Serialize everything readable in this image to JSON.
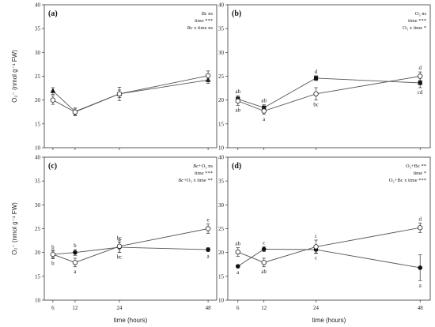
{
  "chart_data": [
    {
      "panel": "(a)",
      "type": "line",
      "ylabel": "O₂⁻ (nmol g⁻¹ FW)",
      "xlabel": "",
      "ylim": [
        10,
        40
      ],
      "yticks": [
        10,
        15,
        20,
        25,
        30,
        35,
        40
      ],
      "x": [
        6,
        12,
        24,
        48
      ],
      "xtick_labels": [],
      "stats": [
        {
          "italic": "Bc",
          "text": " ns"
        },
        {
          "italic": "",
          "text": "time ***"
        },
        {
          "italic": "Bc",
          "text": " x time ns"
        }
      ],
      "series": [
        {
          "marker": "triangle-filled",
          "values": [
            21.9,
            17.6,
            21.3,
            24.2
          ],
          "err": [
            0.7,
            0.7,
            0.8,
            0.7
          ],
          "letters": [
            "",
            "",
            "",
            ""
          ],
          "letter_pos": [
            "above",
            "above",
            "above",
            "above"
          ]
        },
        {
          "marker": "circle-open",
          "values": [
            20.0,
            17.5,
            21.3,
            25.1
          ],
          "err": [
            0.9,
            0.8,
            1.4,
            1.0
          ],
          "letters": [
            "",
            "",
            "",
            ""
          ],
          "letter_pos": [
            "below",
            "below",
            "below",
            "below"
          ]
        }
      ]
    },
    {
      "panel": "(b)",
      "type": "line",
      "ylabel": "",
      "xlabel": "",
      "ylim": [
        10,
        40
      ],
      "yticks": [
        10,
        15,
        20,
        25,
        30,
        35,
        40
      ],
      "x": [
        6,
        12,
        24,
        48
      ],
      "xtick_labels": [],
      "stats": [
        {
          "italic": "",
          "text": "O₃ ns"
        },
        {
          "italic": "",
          "text": "time ***"
        },
        {
          "italic": "",
          "text": "O₃ x time *"
        }
      ],
      "series": [
        {
          "marker": "square-filled",
          "values": [
            20.2,
            18.4,
            24.6,
            23.6
          ],
          "err": [
            0.7,
            0.6,
            0.5,
            1.0
          ],
          "letters": [
            "ab",
            "ab",
            "d",
            "cd"
          ],
          "letter_pos": [
            "above",
            "above",
            "above",
            "below"
          ]
        },
        {
          "marker": "circle-open",
          "values": [
            19.8,
            17.7,
            21.3,
            25.0
          ],
          "err": [
            0.9,
            0.7,
            1.3,
            0.9
          ],
          "letters": [
            "ab",
            "a",
            "bc",
            "d"
          ],
          "letter_pos": [
            "below",
            "below",
            "below",
            "above"
          ]
        }
      ]
    },
    {
      "panel": "(c)",
      "type": "line",
      "ylabel": "O₂⁻ (nmol g⁻¹ FW)",
      "xlabel": "time (hours)",
      "ylim": [
        10,
        40
      ],
      "yticks": [
        10,
        15,
        20,
        25,
        30,
        35,
        40
      ],
      "x": [
        6,
        12,
        24,
        48
      ],
      "xtick_labels": [
        "6",
        "12",
        "24",
        "48"
      ],
      "stats": [
        {
          "italic": "Bc",
          "text": "+O₃ ns"
        },
        {
          "italic": "",
          "text": "time ***"
        },
        {
          "italic": "Bc",
          "text": "+O₃ x time **"
        }
      ],
      "series": [
        {
          "marker": "circle-filled",
          "values": [
            19.6,
            20.0,
            21.1,
            20.6
          ],
          "err": [
            0.7,
            0.6,
            1.1,
            0.4
          ],
          "letters": [
            "b",
            "b",
            "bc",
            "a"
          ],
          "letter_pos": [
            "above",
            "above",
            "above",
            "below"
          ]
        },
        {
          "marker": "circle-open",
          "values": [
            19.6,
            17.9,
            21.3,
            25.0
          ],
          "err": [
            0.9,
            0.9,
            1.3,
            1.0
          ],
          "letters": [
            "b",
            "a",
            "bc",
            "e"
          ],
          "letter_pos": [
            "below",
            "below",
            "below",
            "above"
          ]
        }
      ]
    },
    {
      "panel": "(d)",
      "type": "line",
      "ylabel": "",
      "xlabel": "time (hours)",
      "ylim": [
        10,
        40
      ],
      "yticks": [
        10,
        15,
        20,
        25,
        30,
        35,
        40
      ],
      "x": [
        6,
        12,
        24,
        48
      ],
      "xtick_labels": [
        "6",
        "12",
        "24",
        "48"
      ],
      "stats": [
        {
          "italic": "",
          "text": "O₃+Bc **"
        },
        {
          "italic": "",
          "text": "time *"
        },
        {
          "italic": "",
          "text": "O₃+Bc x time ***"
        }
      ],
      "series": [
        {
          "marker": "circle-filled",
          "values": [
            17.1,
            20.7,
            20.6,
            16.8
          ],
          "err": [
            0.3,
            0.5,
            0.7,
            2.7
          ],
          "letters": [
            "a",
            "c",
            "c",
            "a"
          ],
          "letter_pos": [
            "below",
            "above",
            "below",
            "below"
          ]
        },
        {
          "marker": "circle-open",
          "values": [
            20.1,
            17.9,
            21.2,
            25.2
          ],
          "err": [
            0.9,
            0.9,
            1.4,
            1.0
          ],
          "letters": [
            "ab",
            "ab",
            "c",
            "d"
          ],
          "letter_pos": [
            "above",
            "below",
            "above",
            "above"
          ]
        }
      ]
    }
  ]
}
